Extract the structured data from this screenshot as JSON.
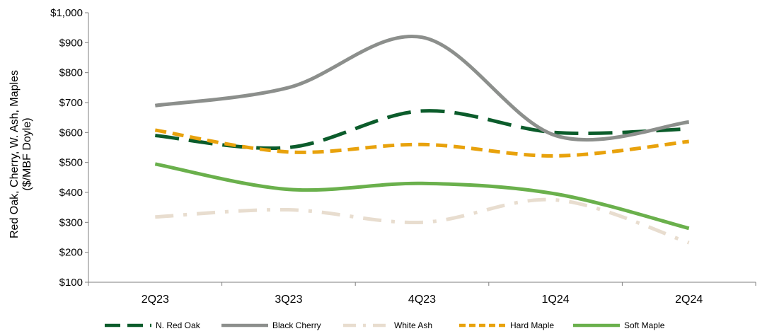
{
  "chart_data": {
    "type": "line",
    "ylabel_line1": "Red Oak, Cherry, W. Ash, Maples",
    "ylabel_line2": "($/MBF Doyle)",
    "xlabel": "",
    "title": "",
    "categories": [
      "2Q23",
      "3Q23",
      "4Q23",
      "1Q24",
      "2Q24"
    ],
    "ylim": [
      100,
      1000
    ],
    "yticks": [
      100,
      200,
      300,
      400,
      500,
      600,
      700,
      800,
      900,
      1000
    ],
    "ytick_labels": [
      "$100",
      "$200",
      "$300",
      "$400",
      "$500",
      "$600",
      "$700",
      "$800",
      "$900",
      "$1,000"
    ],
    "grid": false,
    "legend_position": "bottom",
    "series": [
      {
        "name": "N. Red Oak",
        "values": [
          590,
          550,
          672,
          600,
          612
        ],
        "color": "#0b5c2b",
        "style": "long-dash"
      },
      {
        "name": "Black Cherry",
        "values": [
          690,
          750,
          918,
          590,
          635
        ],
        "color": "#8c8f8c",
        "style": "solid"
      },
      {
        "name": "White Ash",
        "values": [
          318,
          342,
          300,
          375,
          232
        ],
        "color": "#e8ddcf",
        "style": "dash-dot"
      },
      {
        "name": "Hard Maple",
        "values": [
          608,
          535,
          560,
          522,
          570
        ],
        "color": "#e8a20c",
        "style": "dash"
      },
      {
        "name": "Soft Maple",
        "values": [
          495,
          410,
          430,
          395,
          280
        ],
        "color": "#6ab04c",
        "style": "solid"
      }
    ]
  }
}
